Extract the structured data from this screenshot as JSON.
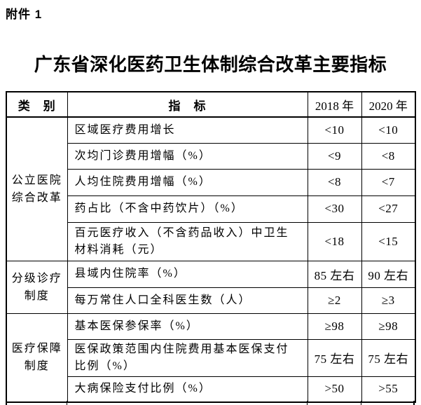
{
  "page": {
    "attachment_label": "附件 1",
    "title": "广东省深化医药卫生体制综合改革主要指标"
  },
  "table": {
    "header": {
      "category": "类　别",
      "indicator": "指　标",
      "y2018": "2018 年",
      "y2020": "2020 年"
    },
    "groups": [
      {
        "category": "公立医院\n综合改革"
      },
      {
        "category": "分级诊疗\n制度"
      },
      {
        "category": "医疗保障\n制度"
      }
    ],
    "rows": [
      {
        "indicator": "区域医疗费用增长",
        "y2018": "<10",
        "y2020": "<10"
      },
      {
        "indicator": "次均门诊费用增幅（%）",
        "y2018": "<9",
        "y2020": "<8"
      },
      {
        "indicator": "人均住院费用增幅（%）",
        "y2018": "<8",
        "y2020": "<7"
      },
      {
        "indicator": "药占比（不含中药饮片）（%）",
        "y2018": "<30",
        "y2020": "<27"
      },
      {
        "indicator": "百元医疗收入（不含药品收入）中卫生\n材料消耗（元）",
        "y2018": "<18",
        "y2020": "<15"
      },
      {
        "indicator": "县域内住院率（%）",
        "y2018": "85 左右",
        "y2020": "90 左右"
      },
      {
        "indicator": "每万常住人口全科医生数（人）",
        "y2018": "≥2",
        "y2020": "≥3"
      },
      {
        "indicator": "基本医保参保率（%）",
        "y2018": "≥98",
        "y2020": "≥98"
      },
      {
        "indicator": "医保政策范围内住院费用基本医保支付\n比例（%）",
        "y2018": "75 左右",
        "y2020": "75 左右"
      },
      {
        "indicator": "大病保险支付比例（%）",
        "y2018": ">50",
        "y2020": ">55"
      }
    ]
  }
}
